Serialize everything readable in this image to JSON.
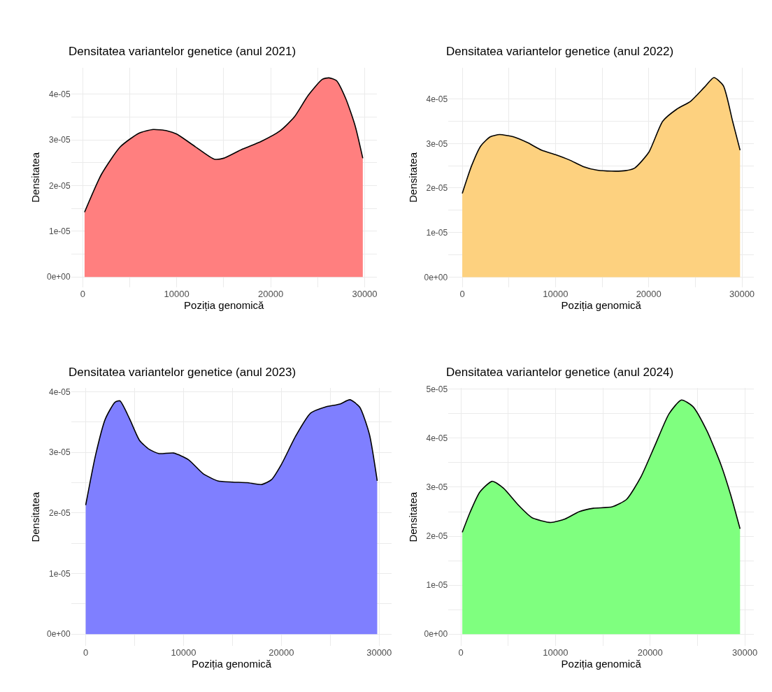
{
  "chart_data": [
    {
      "type": "area",
      "title": "Densitatea variantelor genetice (anul 2021)",
      "xlabel": "Poziția genomică",
      "ylabel": "Densitatea",
      "xlim": [
        -1230,
        31280
      ],
      "ylim": [
        -2.2e-06,
        4.58e-05
      ],
      "xticks": [
        0,
        {
          "value": 5000,
          "label": null
        },
        10000,
        {
          "value": 15000,
          "label": null
        },
        20000,
        {
          "value": 25000,
          "label": null
        },
        30000
      ],
      "yticks": [
        {
          "value": 0,
          "label": "0e+00"
        },
        {
          "value": 5e-06,
          "label": null
        },
        {
          "value": 1e-05,
          "label": "1e-05"
        },
        {
          "value": 1.5e-05,
          "label": null
        },
        {
          "value": 2e-05,
          "label": "2e-05"
        },
        {
          "value": 2.5e-05,
          "label": null
        },
        {
          "value": 3e-05,
          "label": "3e-05"
        },
        {
          "value": 3.5e-05,
          "label": null
        },
        {
          "value": 4e-05,
          "label": "4e-05"
        }
      ],
      "grid": true,
      "series": [
        {
          "color": "#ff7f7f",
          "x": [
            200,
            2000,
            4000,
            6000,
            7500,
            9000,
            10000,
            12000,
            14000,
            15000,
            17000,
            19000,
            21000,
            22500,
            24000,
            25500,
            26200,
            27000,
            28000,
            29000,
            29800
          ],
          "values": [
            1.42e-05,
            2.25e-05,
            2.85e-05,
            3.15e-05,
            3.23e-05,
            3.2e-05,
            3.13e-05,
            2.85e-05,
            2.58e-05,
            2.6e-05,
            2.8e-05,
            2.97e-05,
            3.2e-05,
            3.5e-05,
            3.98e-05,
            4.33e-05,
            4.36e-05,
            4.3e-05,
            3.9e-05,
            3.3e-05,
            2.6e-05
          ]
        }
      ]
    },
    {
      "type": "area",
      "title": "Densitatea variantelor genetice (anul 2022)",
      "xlabel": "Poziția genomică",
      "ylabel": "Densitatea",
      "xlim": [
        -1490,
        31290
      ],
      "ylim": [
        -2.24e-06,
        4.7e-05
      ],
      "xticks": [
        0,
        {
          "value": 5000,
          "label": null
        },
        10000,
        {
          "value": 15000,
          "label": null
        },
        20000,
        {
          "value": 25000,
          "label": null
        },
        30000
      ],
      "yticks": [
        {
          "value": 0,
          "label": "0e+00"
        },
        {
          "value": 5e-06,
          "label": null
        },
        {
          "value": 1e-05,
          "label": "1e-05"
        },
        {
          "value": 1.5e-05,
          "label": null
        },
        {
          "value": 2e-05,
          "label": "2e-05"
        },
        {
          "value": 2.5e-05,
          "label": null
        },
        {
          "value": 3e-05,
          "label": "3e-05"
        },
        {
          "value": 3.5e-05,
          "label": null
        },
        {
          "value": 4e-05,
          "label": "4e-05"
        }
      ],
      "grid": true,
      "series": [
        {
          "color": "#fdd17f",
          "x": [
            0,
            1000,
            2000,
            3000,
            4000,
            5500,
            7000,
            8500,
            10000,
            11500,
            13000,
            14500,
            16000,
            17500,
            18500,
            20000,
            21500,
            23000,
            24500,
            26000,
            27000,
            28000,
            29000,
            29800
          ],
          "values": [
            1.88e-05,
            2.5e-05,
            2.95e-05,
            3.15e-05,
            3.2e-05,
            3.15e-05,
            3.02e-05,
            2.85e-05,
            2.75e-05,
            2.63e-05,
            2.48e-05,
            2.4e-05,
            2.38e-05,
            2.39e-05,
            2.45e-05,
            2.8e-05,
            3.5e-05,
            3.77e-05,
            3.95e-05,
            4.27e-05,
            4.48e-05,
            4.3e-05,
            3.5e-05,
            2.85e-05
          ]
        }
      ]
    },
    {
      "type": "area",
      "title": "Densitatea variantelor genetice (anul 2023)",
      "xlabel": "Poziția genomică",
      "ylabel": "Densitatea",
      "xlim": [
        -1490,
        31290
      ],
      "ylim": [
        -1.95e-06,
        4.06e-05
      ],
      "xticks": [
        0,
        {
          "value": 5000,
          "label": null
        },
        10000,
        {
          "value": 15000,
          "label": null
        },
        20000,
        {
          "value": 25000,
          "label": null
        },
        30000
      ],
      "yticks": [
        {
          "value": 0,
          "label": "0e+00"
        },
        {
          "value": 5e-06,
          "label": null
        },
        {
          "value": 1e-05,
          "label": "1e-05"
        },
        {
          "value": 1.5e-05,
          "label": null
        },
        {
          "value": 2e-05,
          "label": "2e-05"
        },
        {
          "value": 2.5e-05,
          "label": null
        },
        {
          "value": 3e-05,
          "label": "3e-05"
        },
        {
          "value": 3.5e-05,
          "label": null
        },
        {
          "value": 4e-05,
          "label": "4e-05"
        }
      ],
      "grid": true,
      "series": [
        {
          "color": "#7f7fff",
          "x": [
            0,
            1000,
            2000,
            3000,
            3500,
            4500,
            5500,
            6500,
            7500,
            9000,
            10500,
            12000,
            13500,
            15000,
            16500,
            18000,
            19000,
            20000,
            21500,
            23000,
            24500,
            26000,
            27000,
            28000,
            29000,
            29800
          ],
          "values": [
            2.13e-05,
            2.95e-05,
            3.55e-05,
            3.83e-05,
            3.85e-05,
            3.55e-05,
            3.2e-05,
            3.05e-05,
            2.98e-05,
            2.99e-05,
            2.88e-05,
            2.65e-05,
            2.53e-05,
            2.51e-05,
            2.5e-05,
            2.47e-05,
            2.55e-05,
            2.8e-05,
            3.28e-05,
            3.65e-05,
            3.75e-05,
            3.8e-05,
            3.87e-05,
            3.75e-05,
            3.3e-05,
            2.53e-05
          ]
        }
      ]
    },
    {
      "type": "area",
      "title": "Densitatea variantelor genetice (anul 2024)",
      "xlabel": "Poziția genomică",
      "ylabel": "Densitatea",
      "xlim": [
        -1320,
        30970
      ],
      "ylim": [
        -2.39e-06,
        5.02e-05
      ],
      "xticks": [
        0,
        {
          "value": 5000,
          "label": null
        },
        10000,
        {
          "value": 15000,
          "label": null
        },
        20000,
        {
          "value": 25000,
          "label": null
        },
        30000
      ],
      "yticks": [
        {
          "value": 0,
          "label": "0e+00"
        },
        {
          "value": 5e-06,
          "label": null
        },
        {
          "value": 1e-05,
          "label": "1e-05"
        },
        {
          "value": 1.5e-05,
          "label": null
        },
        {
          "value": 2e-05,
          "label": "2e-05"
        },
        {
          "value": 2.5e-05,
          "label": null
        },
        {
          "value": 3e-05,
          "label": "3e-05"
        },
        {
          "value": 3.5e-05,
          "label": null
        },
        {
          "value": 4e-05,
          "label": "4e-05"
        },
        {
          "value": 4.5e-05,
          "label": null
        },
        {
          "value": 5e-05,
          "label": "5e-05"
        }
      ],
      "grid": true,
      "series": [
        {
          "color": "#7fff7f",
          "x": [
            150,
            1000,
            2000,
            3300,
            4500,
            6000,
            7500,
            9500,
            11000,
            12500,
            14000,
            16000,
            17500,
            19000,
            20500,
            22000,
            23300,
            24500,
            26000,
            27500,
            28500,
            29500
          ],
          "values": [
            2.08e-05,
            2.5e-05,
            2.9e-05,
            3.12e-05,
            2.98e-05,
            2.65e-05,
            2.38e-05,
            2.28e-05,
            2.35e-05,
            2.5e-05,
            2.57e-05,
            2.6e-05,
            2.75e-05,
            3.2e-05,
            3.85e-05,
            4.5e-05,
            4.78e-05,
            4.65e-05,
            4.15e-05,
            3.45e-05,
            2.85e-05,
            2.15e-05
          ]
        }
      ]
    }
  ]
}
